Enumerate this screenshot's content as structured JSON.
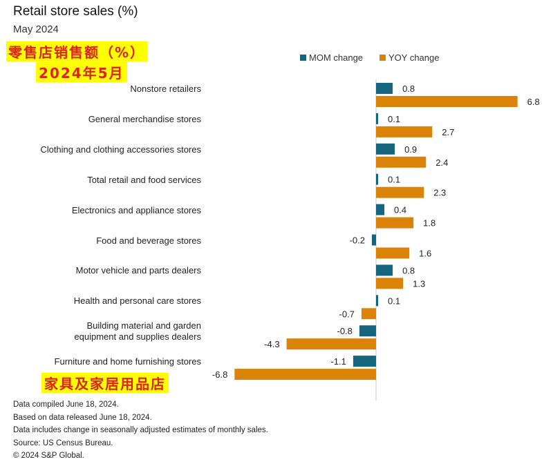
{
  "header": {
    "title": "Retail store sales (%)",
    "subtitle": "May 2024",
    "cn_title": "零售店销售额（%）",
    "cn_date": "2024年5月",
    "cn_furniture": "家具及家居用品店"
  },
  "colors": {
    "mom": "#16657f",
    "yoy": "#db8209"
  },
  "chart_data": {
    "type": "bar",
    "orientation": "horizontal",
    "title": "Retail store sales (%)",
    "subtitle": "May 2024",
    "legend": [
      "MOM change",
      "YOY change"
    ],
    "legend_position": "top-right",
    "categories": [
      "Nonstore retailers",
      "General merchandise stores",
      "Clothing and clothing accessories stores",
      "Total retail and food services",
      "Electronics and appliance stores",
      "Food and beverage stores",
      "Motor vehicle and parts dealers",
      "Health and personal care stores",
      "Building material and garden equipment and supplies dealers",
      "Furniture and home furnishing stores"
    ],
    "category_lines": [
      [
        "Nonstore retailers"
      ],
      [
        "General merchandise stores"
      ],
      [
        "Clothing and clothing accessories stores"
      ],
      [
        "Total retail and food services"
      ],
      [
        "Electronics and appliance stores"
      ],
      [
        "Food and beverage stores"
      ],
      [
        "Motor vehicle and parts dealers"
      ],
      [
        "Health and personal care stores"
      ],
      [
        "Building material and garden",
        "equipment and supplies dealers"
      ],
      [
        "Furniture and home furnishing stores"
      ]
    ],
    "series": [
      {
        "name": "MOM change",
        "values": [
          0.8,
          0.1,
          0.9,
          0.1,
          0.4,
          -0.2,
          0.8,
          0.1,
          -0.8,
          -1.1
        ]
      },
      {
        "name": "YOY change",
        "values": [
          6.8,
          2.7,
          2.4,
          2.3,
          1.8,
          1.6,
          1.3,
          -0.7,
          -4.3,
          -6.8
        ]
      }
    ],
    "xlim": [
      -6.8,
      6.8
    ],
    "grid": false
  },
  "footer": [
    "Data compiled June 18, 2024.",
    "Based on data released June 18, 2024.",
    "Data includes change in seasonally adjusted estimates of monthly sales.",
    "Source: US Census Bureau.",
    "© 2024 S&P Global."
  ]
}
